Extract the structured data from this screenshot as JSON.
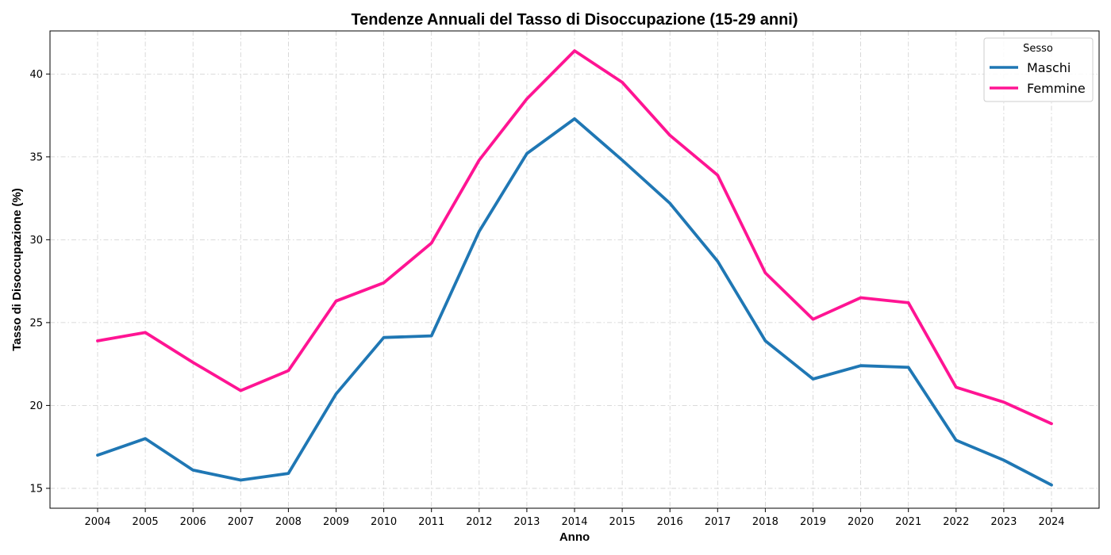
{
  "chart_data": {
    "type": "line",
    "title": "Tendenze Annuali del Tasso di Disoccupazione (15-29 anni)",
    "xlabel": "Anno",
    "ylabel": "Tasso di Disoccupazione (%)",
    "x": [
      "2004",
      "2005",
      "2006",
      "2007",
      "2008",
      "2009",
      "2010",
      "2011",
      "2012",
      "2013",
      "2014",
      "2015",
      "2016",
      "2017",
      "2018",
      "2019",
      "2020",
      "2021",
      "2022",
      "2023",
      "2024"
    ],
    "yticks": [
      15,
      20,
      25,
      30,
      35,
      40
    ],
    "ylim": [
      13.8,
      42.6
    ],
    "grid": true,
    "legend": {
      "title": "Sesso",
      "position": "top-right"
    },
    "series": [
      {
        "name": "Maschi",
        "color": "#1f77b4",
        "values": [
          17.0,
          18.0,
          16.1,
          15.5,
          15.9,
          20.7,
          24.1,
          24.2,
          30.5,
          35.2,
          37.3,
          34.8,
          32.2,
          28.7,
          23.9,
          21.6,
          22.4,
          22.3,
          17.9,
          16.7,
          15.2
        ]
      },
      {
        "name": "Femmine",
        "color": "#ff1493",
        "values": [
          23.9,
          24.4,
          22.6,
          20.9,
          22.1,
          26.3,
          27.4,
          29.8,
          34.8,
          38.5,
          41.4,
          39.5,
          36.3,
          33.9,
          28.0,
          25.2,
          26.5,
          26.2,
          21.1,
          20.2,
          18.9
        ]
      }
    ]
  }
}
